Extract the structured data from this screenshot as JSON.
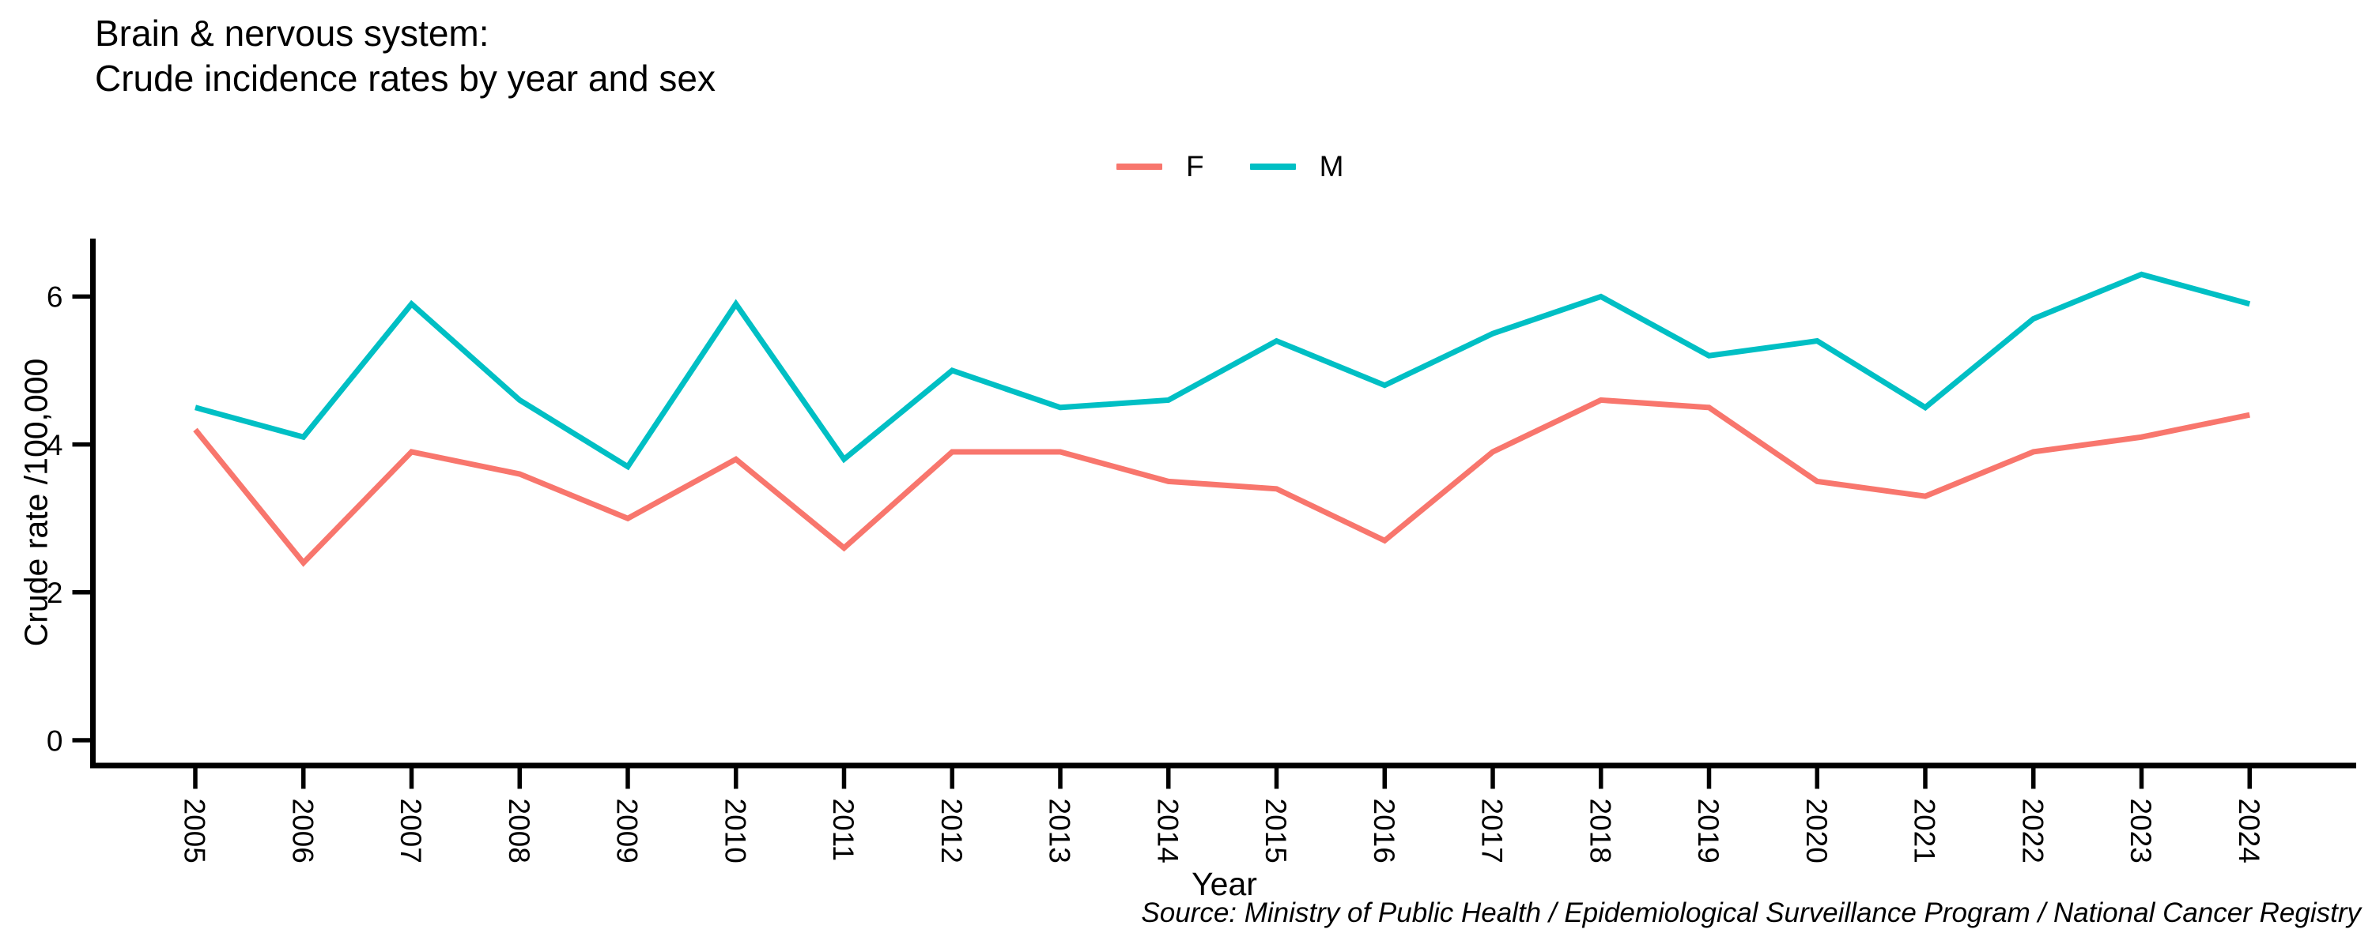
{
  "title": {
    "line1": "Brain & nervous system:",
    "line2": "Crude incidence rates by year and sex"
  },
  "legend": {
    "items": [
      {
        "label": "F",
        "color": "#F8766D"
      },
      {
        "label": "M",
        "color": "#00BFC4"
      }
    ]
  },
  "source": "Source: Ministry of Public Health / Epidemiological Surveillance Program / National Cancer Registry",
  "colors": {
    "female": "#F8766D",
    "male": "#00BFC4",
    "axis": "#000000",
    "background": "#FFFFFF"
  },
  "chart_data": {
    "type": "line",
    "title": "Brain & nervous system: Crude incidence rates by year and sex",
    "xlabel": "Year",
    "ylabel": "Crude rate /100,000",
    "categories": [
      "2005",
      "2006",
      "2007",
      "2008",
      "2009",
      "2010",
      "2011",
      "2012",
      "2013",
      "2014",
      "2015",
      "2016",
      "2017",
      "2018",
      "2019",
      "2020",
      "2021",
      "2022",
      "2023",
      "2024"
    ],
    "series": [
      {
        "name": "F",
        "color": "#F8766D",
        "values": [
          4.2,
          2.4,
          3.9,
          3.6,
          3.0,
          3.8,
          2.6,
          3.9,
          3.9,
          3.5,
          3.4,
          2.7,
          3.9,
          4.6,
          4.5,
          3.5,
          3.3,
          3.9,
          4.1,
          4.4
        ]
      },
      {
        "name": "M",
        "color": "#00BFC4",
        "values": [
          4.5,
          4.1,
          5.9,
          4.6,
          3.7,
          5.9,
          3.8,
          5.0,
          4.5,
          4.6,
          5.4,
          4.8,
          5.5,
          6.0,
          5.2,
          5.4,
          4.5,
          5.7,
          6.3,
          5.9
        ]
      }
    ],
    "y_ticks": [
      0,
      2,
      4,
      6
    ],
    "ylim": [
      0,
      6.8
    ],
    "grid": false,
    "legend_position": "top-center"
  }
}
